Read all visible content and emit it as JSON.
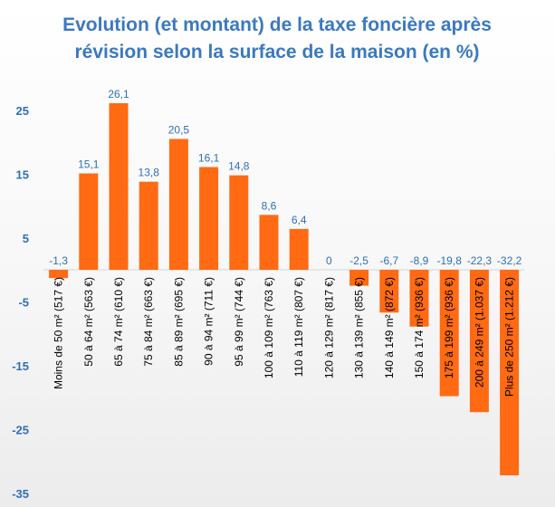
{
  "chart_data": {
    "type": "bar",
    "title": [
      "Evolution (et montant) de la taxe foncière après",
      "révision selon la surface de la maison (en %)"
    ],
    "xlabel": "",
    "ylabel": "",
    "ylim": [
      -35,
      30
    ],
    "yticks": [
      25,
      15,
      5,
      -5,
      -15,
      -25,
      -35
    ],
    "ytick_labels": [
      "25",
      "15",
      "5",
      "-5",
      "-15",
      "-25",
      "-35"
    ],
    "bar_color": "#ff6a13",
    "label_color": "#2f6fb5",
    "categories": [
      "Moins de 50 m² (517 €)",
      "50 à 64 m² (563 €)",
      "65 à 74 m² (610 €)",
      "75 à 84 m² (663 €)",
      "85 à 89 m² (695 €)",
      "90 à 94 m² (711 €)",
      "95 à 99 m² (744 €)",
      "100 à 109 m² (763 €)",
      "110 à 119 m² (807 €)",
      "120 à 129 m² (817 €)",
      "130 à 139 m² (855 €)",
      "140 à 149 m² (872 €)",
      "150 à 174 m² (936 €)",
      "175 à 199 m² (936 €)",
      "200 à 249 m² (1.037 €)",
      "Plus de 250 m² (1.212 €)"
    ],
    "values": [
      -1.3,
      15.1,
      26.1,
      13.8,
      20.5,
      16.1,
      14.8,
      8.6,
      6.4,
      0,
      -2.5,
      -6.7,
      -8.9,
      -19.8,
      -22.3,
      -32.2
    ],
    "value_labels": [
      "-1,3",
      "15,1",
      "26,1",
      "13,8",
      "20,5",
      "16,1",
      "14,8",
      "8,6",
      "6,4",
      "0",
      "-2,5",
      "-6,7",
      "-8,9",
      "-19,8",
      "-22,3",
      "-32,2"
    ],
    "grid": false,
    "legend": "none"
  }
}
